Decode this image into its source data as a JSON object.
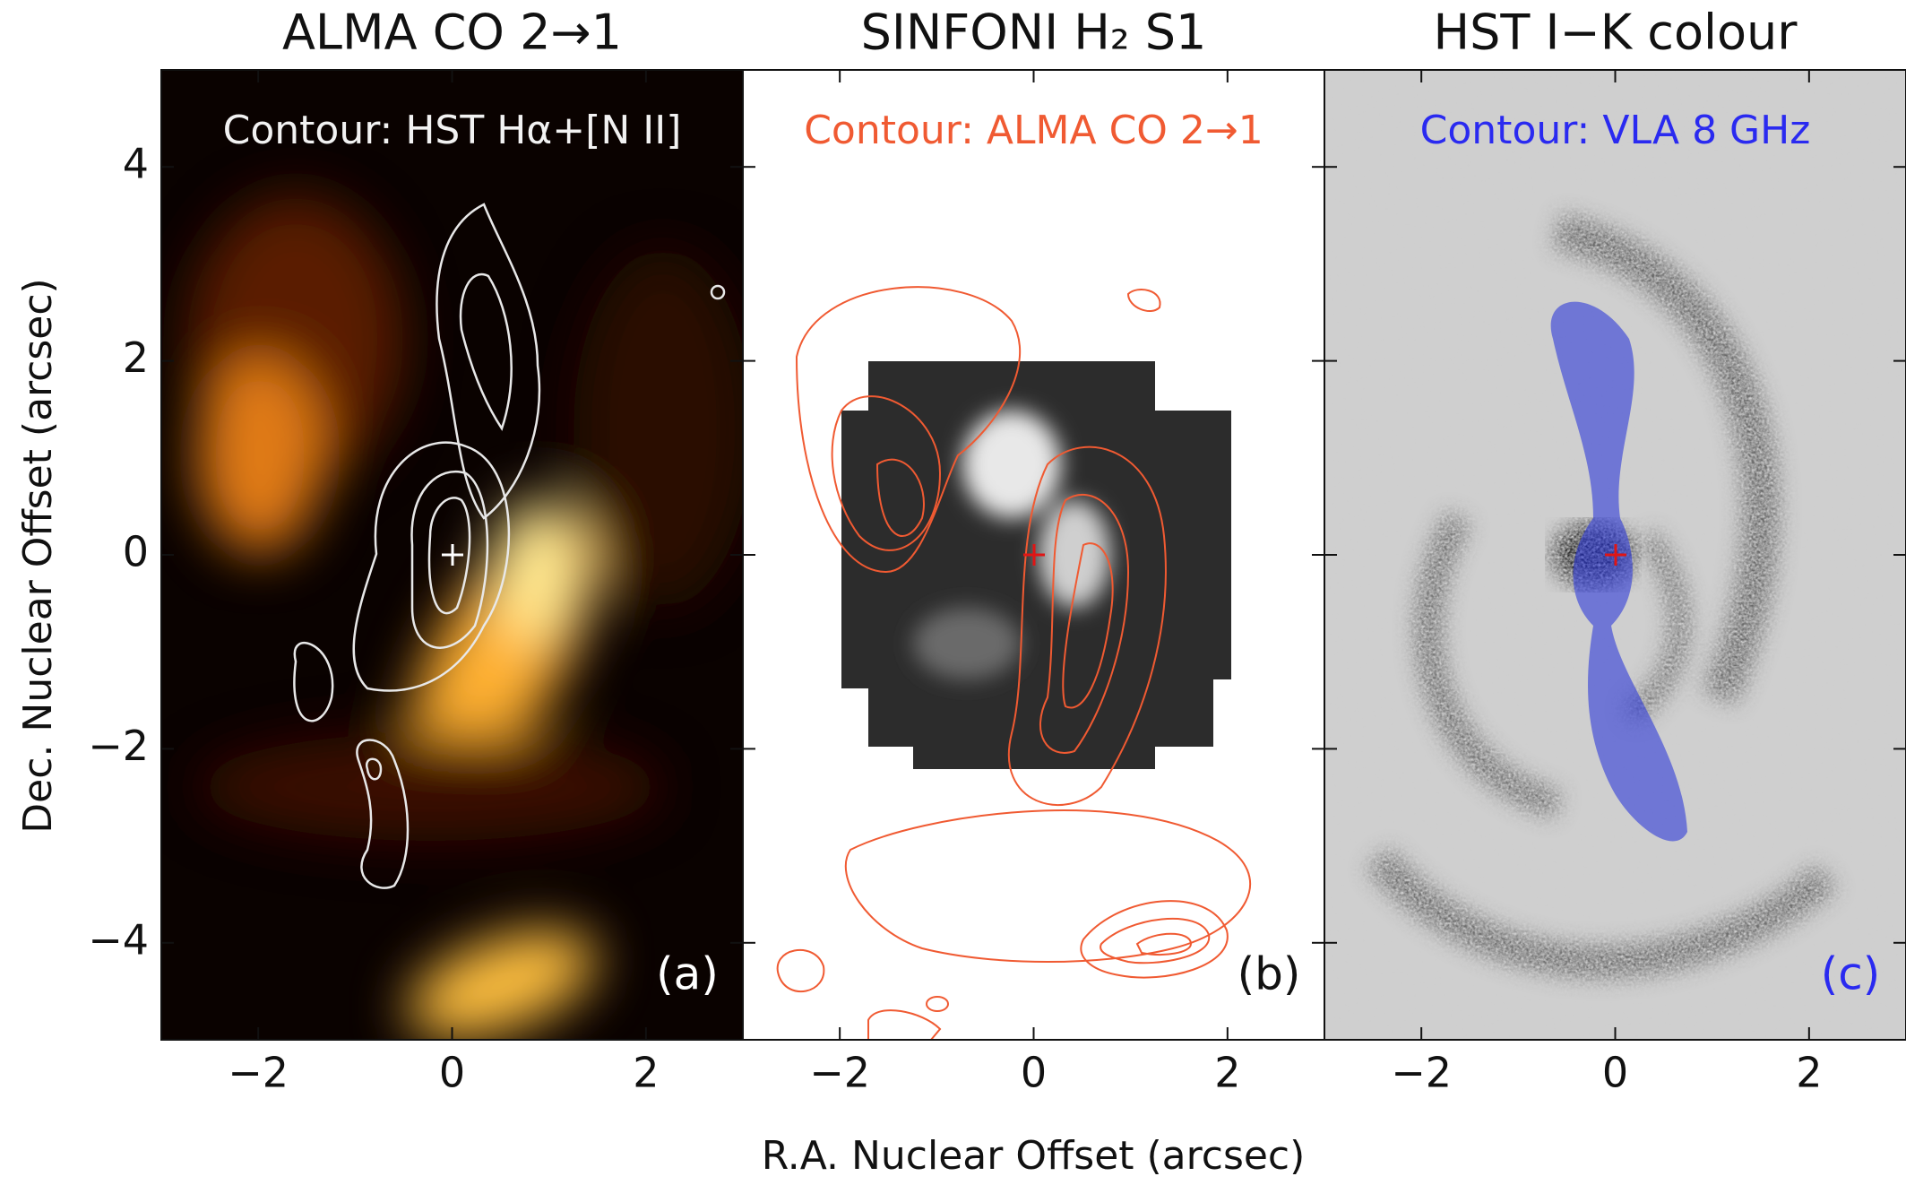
{
  "figure": {
    "xlabel": "R.A. Nuclear Offset (arcsec)",
    "ylabel": "Dec. Nuclear Offset (arcsec)"
  },
  "chart_data": [
    {
      "type": "image",
      "title": "ALMA CO 2→1",
      "annotation": "Contour: HST Hα+[N II]",
      "annotation_color": "#f2f2f2",
      "label": "(a)",
      "label_color": "#ffffff",
      "xlim": [
        -3,
        3
      ],
      "ylim": [
        -5,
        5
      ],
      "xticks": [
        {
          "value": -2,
          "label": "−2"
        },
        0,
        2
      ],
      "yticks": [
        {
          "value": -4,
          "label": "−4"
        },
        {
          "value": -2,
          "label": "−2"
        },
        0,
        2,
        4
      ]
    },
    {
      "type": "image",
      "title": "SINFONI H₂ S1",
      "annotation": "Contour: ALMA CO 2→1",
      "annotation_color": "#f05a32",
      "label": "(b)",
      "label_color": "#111111",
      "xlim": [
        -3,
        3
      ],
      "ylim": [
        -5,
        5
      ],
      "xticks": [
        {
          "value": -2,
          "label": "−2"
        },
        0,
        2
      ],
      "yticks": [
        -4,
        -2,
        0,
        2,
        4
      ]
    },
    {
      "type": "image",
      "title": "HST I−K colour",
      "annotation": "Contour: VLA 8 GHz",
      "annotation_color": "#2a2af0",
      "label": "(c)",
      "label_color": "#2a2af0",
      "xlim": [
        -3,
        3
      ],
      "ylim": [
        -5,
        5
      ],
      "xticks": [
        {
          "value": -2,
          "label": "−2"
        },
        0,
        2
      ],
      "yticks": [
        -4,
        -2,
        0,
        2,
        4
      ]
    }
  ]
}
